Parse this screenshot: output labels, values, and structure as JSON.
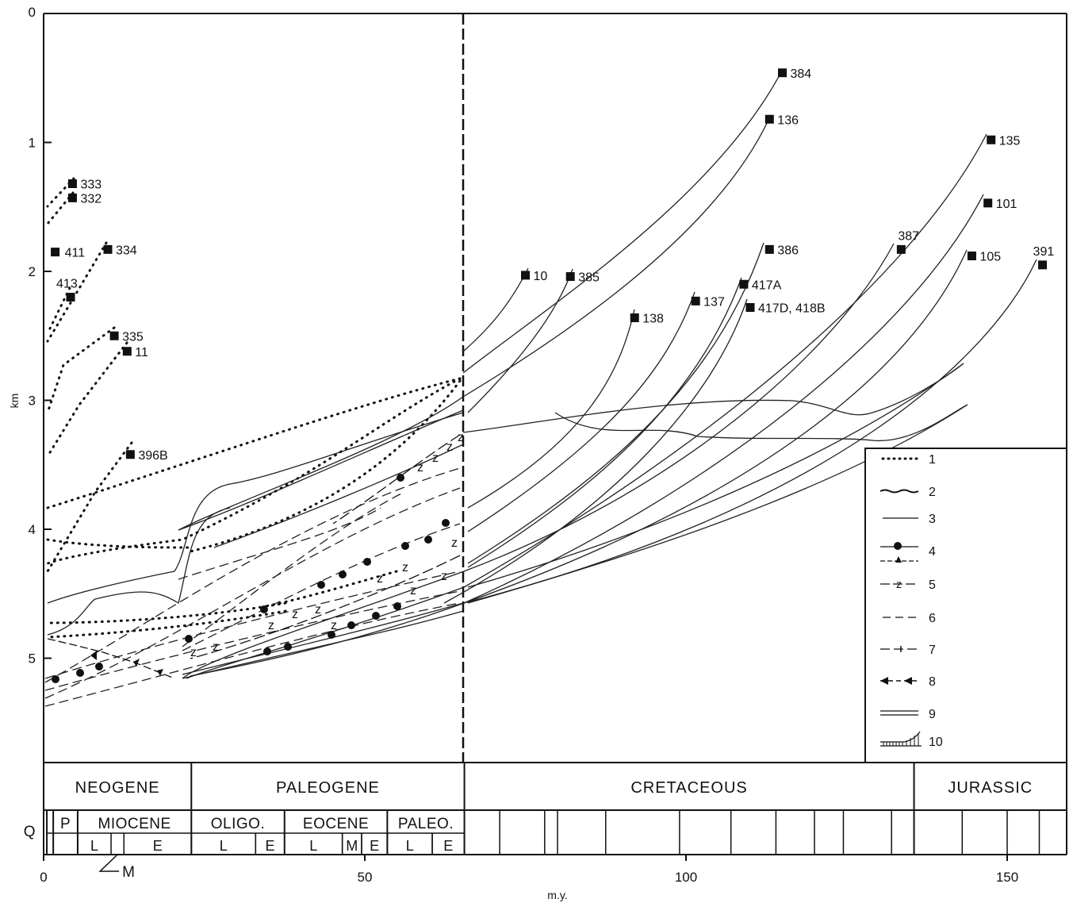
{
  "chart_data": {
    "type": "line",
    "xlabel": "m.y.",
    "ylabel": "km",
    "xlim": [
      0,
      160
    ],
    "ylim": [
      0,
      6
    ],
    "y_inverted": true,
    "xticks": [
      "0",
      "50",
      "100",
      "150"
    ],
    "yticks": [
      "0",
      "1",
      "2",
      "3",
      "4",
      "5"
    ],
    "legend": [
      "1",
      "2",
      "3",
      "4",
      "5",
      "6",
      "7",
      "8",
      "9",
      "10"
    ],
    "legend_position": "bottom-right",
    "sites": [
      {
        "label": "333",
        "age": 4.5,
        "depth": 1.32
      },
      {
        "label": "332",
        "age": 4.5,
        "depth": 1.43
      },
      {
        "label": "411",
        "age": 1.8,
        "depth": 1.85
      },
      {
        "label": "334",
        "age": 10,
        "depth": 1.83
      },
      {
        "label": "413",
        "age": 4.2,
        "depth": 2.2
      },
      {
        "label": "335",
        "age": 11,
        "depth": 2.5
      },
      {
        "label": "11",
        "age": 13,
        "depth": 2.62
      },
      {
        "label": "396B",
        "age": 13.5,
        "depth": 3.42
      },
      {
        "label": "10",
        "age": 75,
        "depth": 2.03
      },
      {
        "label": "385",
        "age": 82,
        "depth": 2.04
      },
      {
        "label": "138",
        "age": 92,
        "depth": 2.36
      },
      {
        "label": "137",
        "age": 101.5,
        "depth": 2.23
      },
      {
        "label": "384",
        "age": 115,
        "depth": 0.46
      },
      {
        "label": "136",
        "age": 113,
        "depth": 0.82
      },
      {
        "label": "386",
        "age": 113,
        "depth": 1.83
      },
      {
        "label": "417A",
        "age": 109,
        "depth": 2.1
      },
      {
        "label": "417D, 418B",
        "age": 110,
        "depth": 2.28
      },
      {
        "label": "387",
        "age": 133.5,
        "depth": 1.83
      },
      {
        "label": "135",
        "age": 147.5,
        "depth": 0.98
      },
      {
        "label": "101",
        "age": 147,
        "depth": 1.47
      },
      {
        "label": "105",
        "age": 144.5,
        "depth": 1.88
      },
      {
        "label": "391",
        "age": 155.5,
        "depth": 1.95
      }
    ],
    "periods": [
      {
        "label": "NEOGENE",
        "start": 0,
        "end": 23
      },
      {
        "label": "PALEOGENE",
        "start": 23,
        "end": 65.5
      },
      {
        "label": "CRETACEOUS",
        "start": 65.5,
        "end": 135.5
      },
      {
        "label": "JURASSIC",
        "start": 135.5,
        "end": 160
      }
    ],
    "epochs": [
      {
        "label": "P",
        "start": 1.5,
        "end": 5.3
      },
      {
        "label": "MIOCENE",
        "start": 5.3,
        "end": 23
      },
      {
        "label": "OLIGO.",
        "start": 23,
        "end": 37.5
      },
      {
        "label": "EOCENE",
        "start": 37.5,
        "end": 53.5
      },
      {
        "label": "PALEO.",
        "start": 53.5,
        "end": 65.5
      }
    ],
    "subdivisions": [
      {
        "label": "L",
        "start": 5.3,
        "end": 10.5
      },
      {
        "label": "E",
        "start": 12.5,
        "end": 23
      },
      {
        "label": "L",
        "start": 23,
        "end": 33
      },
      {
        "label": "E",
        "start": 33,
        "end": 37.5
      },
      {
        "label": "L",
        "start": 37.5,
        "end": 46.5
      },
      {
        "label": "M",
        "start": 46.5,
        "end": 49.5
      },
      {
        "label": "E",
        "start": 49.5,
        "end": 53.5
      },
      {
        "label": "L",
        "start": 53.5,
        "end": 60.5
      },
      {
        "label": "E",
        "start": 60.5,
        "end": 65.5
      }
    ],
    "quaternary_label": "Q",
    "middle_miocene_label": "M"
  }
}
